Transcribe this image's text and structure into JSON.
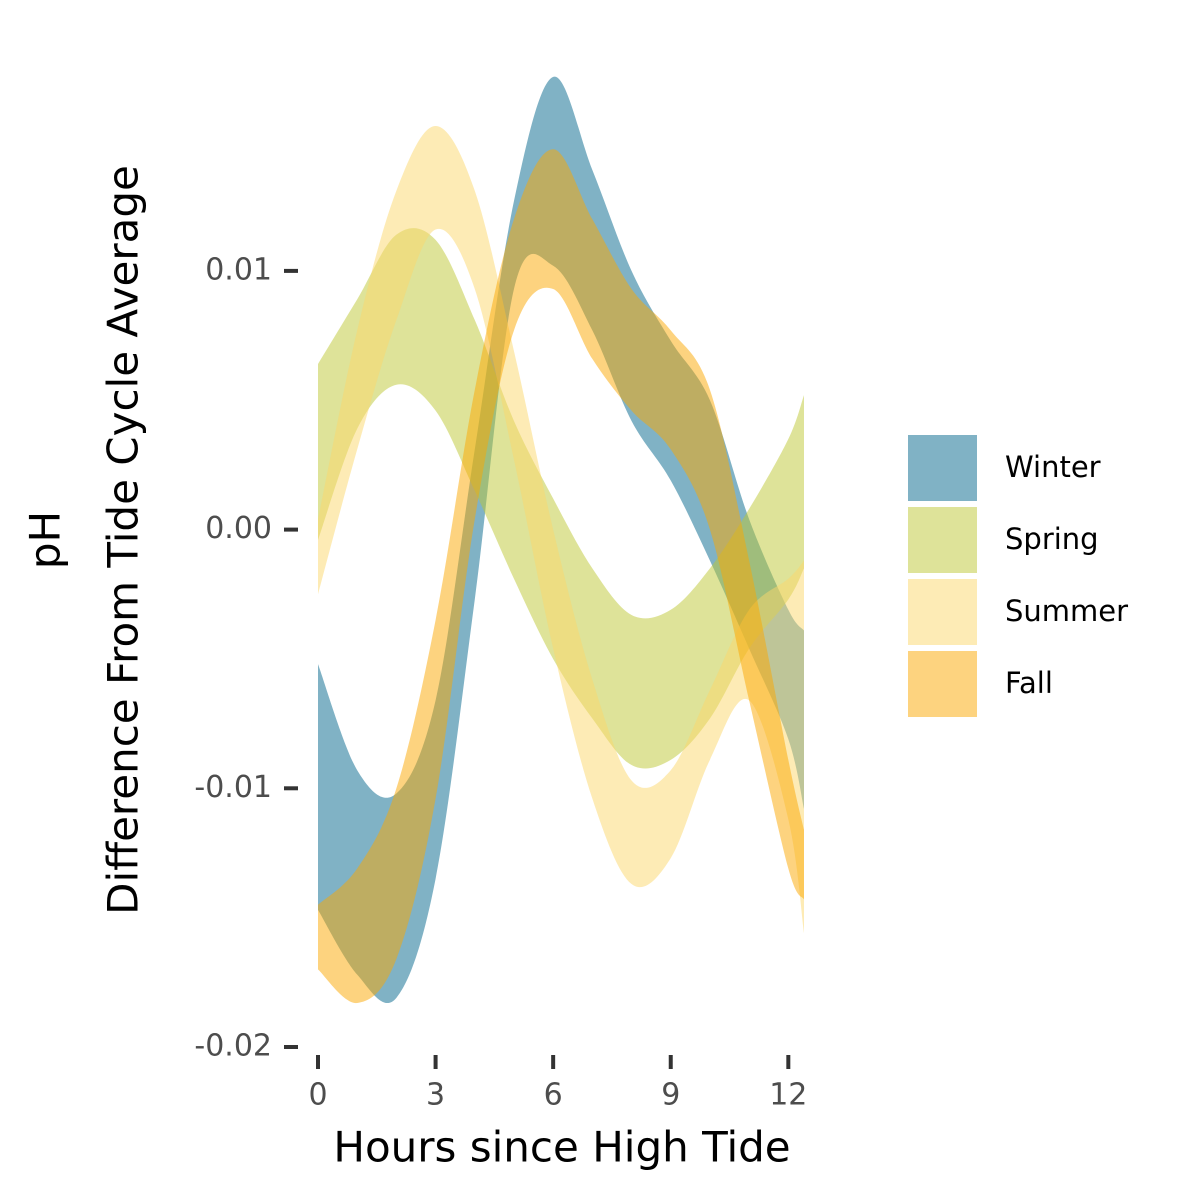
{
  "chart_data": {
    "type": "ribbon",
    "x_label": "Hours since High Tide",
    "y_label": [
      "pH",
      "Difference From Tide Cycle Average"
    ],
    "x": [
      0,
      1,
      2,
      3,
      4,
      5,
      6,
      7,
      8,
      9,
      10,
      11,
      12,
      12.4
    ],
    "xlim": [
      0,
      12.4
    ],
    "xticks": [
      0,
      3,
      6,
      9,
      12
    ],
    "ylim": [
      -0.02,
      0.0185
    ],
    "yticks": [
      -0.02,
      -0.01,
      {
        "value": 0,
        "label": "0.00"
      },
      0.01
    ],
    "grid": false,
    "opacity": 0.5,
    "legend": "right",
    "series": [
      {
        "name": "Winter",
        "color": "#01668b",
        "lower": [
          -0.0147,
          -0.0172,
          -0.0181,
          -0.0135,
          -0.0027,
          0.0093,
          0.0102,
          0.0077,
          0.0042,
          0.0019,
          -0.0012,
          -0.0046,
          -0.0081,
          -0.0108
        ],
        "upper": [
          -0.0052,
          -0.0093,
          -0.0102,
          -0.0066,
          0.0031,
          0.0127,
          0.0175,
          0.0139,
          0.01,
          0.0073,
          0.005,
          0.0004,
          -0.0031,
          -0.0039
        ]
      },
      {
        "name": "Spring",
        "color": "#bec834",
        "lower": [
          -0.0004,
          0.0039,
          0.0056,
          0.0046,
          0.0015,
          -0.0019,
          -0.005,
          -0.0073,
          -0.0091,
          -0.0089,
          -0.0073,
          -0.0046,
          -0.0027,
          -0.0015
        ],
        "upper": [
          0.0064,
          0.0089,
          0.0114,
          0.0112,
          0.0081,
          0.0042,
          0.0012,
          -0.0015,
          -0.0033,
          -0.0031,
          -0.0015,
          0.0008,
          0.0035,
          0.0052
        ]
      },
      {
        "name": "Summer",
        "color": "#fbd76b",
        "lower": [
          -0.0025,
          0.0031,
          0.0081,
          0.0116,
          0.0093,
          0.0027,
          -0.0046,
          -0.0104,
          -0.0137,
          -0.0127,
          -0.0089,
          -0.0066,
          -0.0112,
          -0.0156
        ],
        "upper": [
          0.0004,
          0.0077,
          0.0131,
          0.0156,
          0.0131,
          0.0069,
          0.0,
          -0.0058,
          -0.0097,
          -0.0093,
          -0.0062,
          -0.0031,
          -0.0019,
          -0.0012
        ]
      },
      {
        "name": "Fall",
        "color": "#fca800",
        "lower": [
          -0.017,
          -0.0183,
          -0.0166,
          -0.0104,
          0.0004,
          0.0077,
          0.0093,
          0.0066,
          0.0046,
          0.0031,
          0.0,
          -0.0066,
          -0.0131,
          -0.0143
        ],
        "upper": [
          -0.0145,
          -0.0131,
          -0.01,
          -0.0035,
          0.0054,
          0.012,
          0.0147,
          0.012,
          0.0093,
          0.0077,
          0.0054,
          -0.0012,
          -0.0089,
          -0.0116
        ]
      }
    ]
  }
}
